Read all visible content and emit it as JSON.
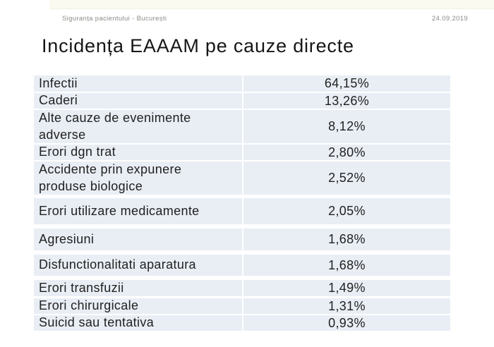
{
  "slide": {
    "header": {
      "left_text": "Siguranța pacientului - București",
      "date": "24.09.2019"
    },
    "title": "Incidența EAAAM pe cauze directe",
    "colors": {
      "top_accent_bar": "#fafaf0",
      "row_background": "#e9eef5",
      "header_text": "#8b8b87",
      "title_text": "#161616",
      "cell_text": "#212121"
    }
  },
  "table": {
    "rows": [
      {
        "label": "Infectii",
        "value": "64,15%"
      },
      {
        "label": "Caderi",
        "value": "13,26%"
      },
      {
        "label": "Alte cauze de evenimente\nadverse",
        "value": "8,12%"
      },
      {
        "label": "Erori dgn trat",
        "value": "2,80%"
      },
      {
        "label": "Accidente prin expunere\nproduse biologice",
        "value": "2,52%"
      },
      {
        "label": "Erori utilizare medicamente",
        "value": "2,05%"
      },
      {
        "label": "Agresiuni",
        "value": "1,68%"
      },
      {
        "label": "Disfunctionalitati aparatura",
        "value": "1,68%"
      },
      {
        "label": "Erori transfuzii",
        "value": "1,49%"
      },
      {
        "label": "Erori chirurgicale",
        "value": "1,31%"
      },
      {
        "label": "Suicid sau tentativa",
        "value": "0,93%"
      }
    ]
  }
}
